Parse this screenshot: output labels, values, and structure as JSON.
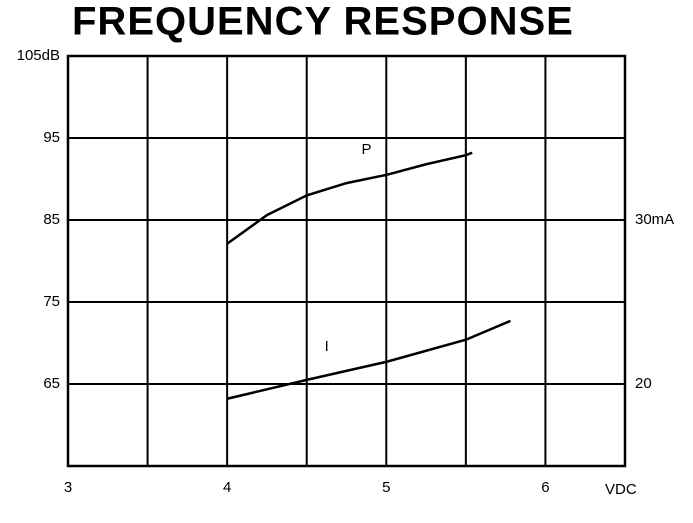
{
  "chart_data": {
    "type": "line",
    "title": "FREQUENCY RESPONSE",
    "xlabel": "VDC",
    "xlim": [
      3,
      6.5
    ],
    "xticks": [
      3,
      4,
      5,
      6
    ],
    "xgrid": [
      3.5,
      4,
      4.5,
      5,
      5.5,
      6
    ],
    "ylim": [
      55,
      105
    ],
    "yticks": [
      65,
      75,
      85,
      {
        "value": 105,
        "label": "105dB"
      },
      95
    ],
    "y2lim": [
      15,
      40
    ],
    "y2ticks": [
      20,
      {
        "value": 30,
        "label": "30mA"
      }
    ],
    "grid": true,
    "series": [
      {
        "name": "P",
        "color": "#000000",
        "x": [
          4.0,
          4.25,
          4.5,
          4.75,
          5.0,
          5.25,
          5.5,
          5.54
        ],
        "values": [
          82.1,
          85.6,
          88.0,
          89.5,
          90.5,
          91.8,
          92.9,
          93.2
        ]
      },
      {
        "name": "I",
        "color": "#000000",
        "axis": "y2",
        "x": [
          4.0,
          4.5,
          5.0,
          5.5,
          5.78
        ],
        "values": [
          19.1,
          20.25,
          21.35,
          22.7,
          23.85
        ]
      }
    ]
  }
}
